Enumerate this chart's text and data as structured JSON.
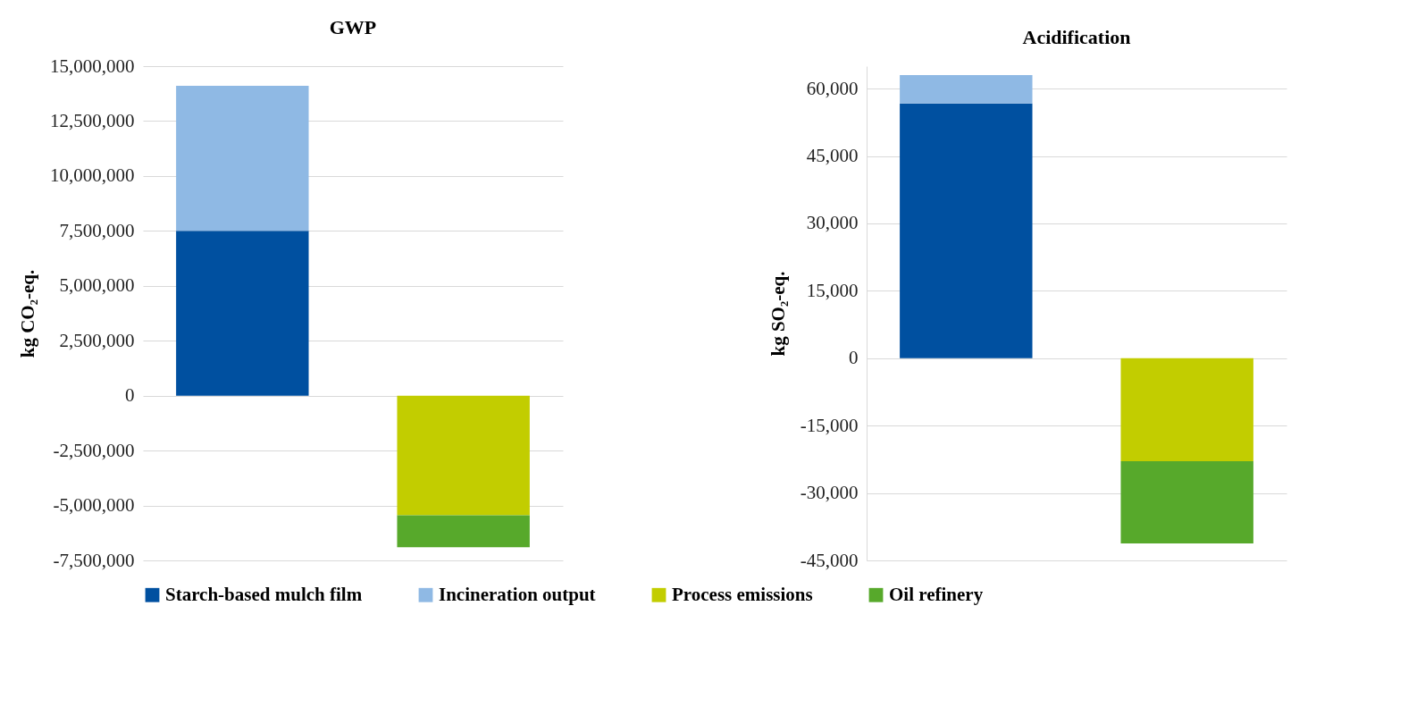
{
  "chart_data": [
    {
      "type": "bar",
      "title": "GWP",
      "ylabel": "kg CO₂-eq.",
      "categories": [
        null,
        null
      ],
      "stacked": true,
      "grid": "y",
      "legend": "bottom",
      "tick_labels": "y",
      "ylim": [
        -7500000,
        15000000
      ],
      "yticks": [
        {
          "value": -7500000,
          "label": "-7,500,000"
        },
        {
          "value": -5000000,
          "label": "-5,000,000"
        },
        {
          "value": -2500000,
          "label": "-2,500,000"
        },
        0,
        {
          "value": 2500000,
          "label": "2,500,000"
        },
        {
          "value": 5000000,
          "label": "5,000,000"
        },
        {
          "value": 7500000,
          "label": "7,500,000"
        },
        {
          "value": 10000000,
          "label": "10,000,000"
        },
        {
          "value": 12500000,
          "label": "12,500,000"
        },
        {
          "value": 15000000,
          "label": "15,000,000"
        }
      ],
      "series": [
        {
          "name": "Starch-based mulch film",
          "color": "#0050a0",
          "values": [
            7500000,
            null
          ]
        },
        {
          "name": "Incineration output",
          "color": "#8fb9e4",
          "values": [
            6600000,
            null
          ]
        },
        {
          "name": "Process emissions",
          "color": "#c2cd00",
          "values": [
            null,
            -5450000
          ]
        },
        {
          "name": "Oil refinery",
          "color": "#57a92b",
          "values": [
            null,
            -1450000
          ]
        }
      ]
    },
    {
      "type": "bar",
      "title": "Acidification",
      "ylabel": "kg SO₂-eq.",
      "categories": [
        null,
        null
      ],
      "stacked": true,
      "grid": "y",
      "legend": "bottom",
      "tick_labels": "y",
      "ylim": [
        -45000,
        65000
      ],
      "yticks": [
        {
          "value": -45000,
          "label": "-45,000"
        },
        {
          "value": -30000,
          "label": "-30,000"
        },
        {
          "value": -15000,
          "label": "-15,000"
        },
        0,
        {
          "value": 15000,
          "label": "15,000"
        },
        {
          "value": 30000,
          "label": "30,000"
        },
        {
          "value": 45000,
          "label": "45,000"
        },
        {
          "value": 60000,
          "label": "60,000"
        }
      ],
      "series": [
        {
          "name": "Starch-based mulch film",
          "color": "#0050a0",
          "values": [
            56700,
            null
          ]
        },
        {
          "name": "Incineration output",
          "color": "#8fb9e4",
          "values": [
            6300,
            null
          ]
        },
        {
          "name": "Process emissions",
          "color": "#c2cd00",
          "values": [
            null,
            -22900
          ]
        },
        {
          "name": "Oil refinery",
          "color": "#57a92b",
          "values": [
            null,
            -18300
          ]
        }
      ]
    }
  ]
}
